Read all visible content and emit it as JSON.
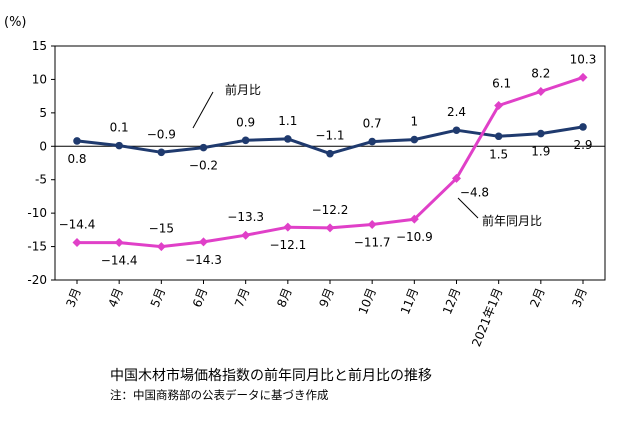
{
  "chart_data": {
    "type": "line",
    "unit_label": "(%)",
    "categories": [
      "3月",
      "4月",
      "5月",
      "6月",
      "7月",
      "8月",
      "9月",
      "10月",
      "11月",
      "12月",
      "2021年1月",
      "2月",
      "3月"
    ],
    "ylim": [
      -20,
      15
    ],
    "yticks": [
      "15",
      "10",
      "5",
      "0",
      "-5",
      "-10",
      "-15",
      "-20"
    ],
    "grid": false,
    "series": [
      {
        "name": "前月比",
        "color": "#1f3a6e",
        "values": [
          0.8,
          0.1,
          -0.9,
          -0.2,
          0.9,
          1.1,
          -1.1,
          0.7,
          1,
          2.4,
          1.5,
          1.9,
          2.9
        ],
        "labels": [
          "0.8",
          "0.1",
          "−0.9",
          "−0.2",
          "0.9",
          "1.1",
          "−1.1",
          "0.7",
          "1",
          "2.4",
          "1.5",
          "1.9",
          "2.9"
        ]
      },
      {
        "name": "前年同月比",
        "color": "#e040c8",
        "values": [
          -14.4,
          -14.4,
          -15,
          -14.3,
          -13.3,
          -12.1,
          -12.2,
          -11.7,
          -10.9,
          -4.8,
          6.1,
          8.2,
          10.3
        ],
        "labels": [
          "−14.4",
          "−14.4",
          "−15",
          "−14.3",
          "−13.3",
          "−12.1",
          "−12.2",
          "−11.7",
          "−10.9",
          "−4.8",
          "6.1",
          "8.2",
          "10.3"
        ]
      }
    ]
  },
  "caption": "中国木材市場価格指数の前年同月比と前月比の推移",
  "note": "注：中国商務部の公表データに基づき作成"
}
